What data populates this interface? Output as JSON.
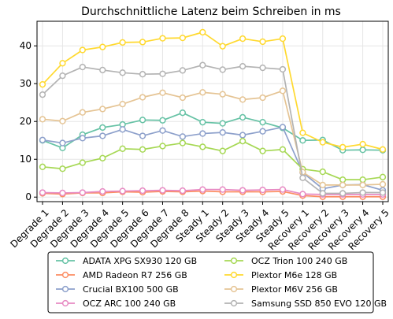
{
  "chart_data": {
    "type": "line",
    "title": "Durchschnittliche Latenz beim Schreiben in ms",
    "xlabel": "",
    "ylabel": "",
    "x": [
      "Degrade 1",
      "Degrade 2",
      "Degrade 3",
      "Degrade 4",
      "Degrade 5",
      "Degrade 6",
      "Degrade 7",
      "Degrade 8",
      "Steady 1",
      "Steady 2",
      "Steady 3",
      "Steady 4",
      "Steady 5",
      "Recovery 1",
      "Recovery 2",
      "Recovery 3",
      "Recovery 4",
      "Recovery 5"
    ],
    "ylim": [
      -1.2,
      46.5
    ],
    "yticks": [
      0,
      10,
      20,
      30,
      40
    ],
    "grid": true,
    "legend_position": "bottom",
    "series": [
      {
        "name": "ADATA XPG SX930 120 GB",
        "color": "#66c2a5",
        "values": [
          15.0,
          13.0,
          16.5,
          18.4,
          19.2,
          20.4,
          20.3,
          22.3,
          19.8,
          19.5,
          21.1,
          19.8,
          18.3,
          15.0,
          15.1,
          12.4,
          12.5,
          12.4
        ]
      },
      {
        "name": "AMD Radeon R7 256 GB",
        "color": "#fc8d62",
        "values": [
          1.0,
          0.8,
          1.1,
          1.1,
          1.4,
          1.3,
          1.5,
          1.4,
          1.6,
          1.4,
          1.4,
          1.4,
          1.5,
          0.4,
          0.1,
          0.1,
          0.1,
          0.1
        ]
      },
      {
        "name": "Crucial BX100 500 GB",
        "color": "#8da0cb",
        "values": [
          15.1,
          14.3,
          15.6,
          16.2,
          17.9,
          16.2,
          17.6,
          16.0,
          16.8,
          17.1,
          16.4,
          17.4,
          18.5,
          6.5,
          2.2,
          3.2,
          3.3,
          1.8
        ]
      },
      {
        "name": "OCZ ARC 100 240 GB",
        "color": "#e78ac3",
        "values": [
          1.2,
          1.1,
          1.2,
          1.5,
          1.6,
          1.7,
          1.8,
          1.7,
          2.0,
          2.0,
          1.8,
          1.9,
          2.0,
          0.8,
          0.7,
          0.7,
          0.7,
          0.7
        ]
      },
      {
        "name": "OCZ Trion 100 240 GB",
        "color": "#a6d854",
        "values": [
          8.0,
          7.5,
          9.1,
          10.3,
          12.8,
          12.6,
          13.5,
          14.3,
          13.3,
          12.2,
          14.8,
          12.2,
          12.6,
          7.4,
          6.7,
          4.6,
          4.6,
          5.3
        ]
      },
      {
        "name": "Plextor M6e 128 GB",
        "color": "#ffd92f",
        "values": [
          29.8,
          35.4,
          38.9,
          39.7,
          40.9,
          41.0,
          42.0,
          42.1,
          43.6,
          39.9,
          41.9,
          41.1,
          41.9,
          17.0,
          14.5,
          13.2,
          14.0,
          12.6
        ]
      },
      {
        "name": "Plextor M6V 256 GB",
        "color": "#e5c494",
        "values": [
          20.6,
          20.1,
          22.4,
          23.3,
          24.6,
          26.4,
          27.6,
          26.3,
          27.7,
          27.2,
          25.8,
          26.3,
          28.1,
          6.6,
          3.2,
          3.2,
          3.2,
          3.4
        ]
      },
      {
        "name": "Samsung SSD 850 EVO 120 GB",
        "color": "#b3b3b3",
        "values": [
          27.1,
          32.1,
          34.4,
          33.6,
          32.9,
          32.5,
          32.6,
          33.5,
          34.9,
          33.7,
          34.6,
          34.2,
          33.8,
          5.1,
          1.0,
          1.0,
          1.2,
          1.2
        ]
      }
    ]
  }
}
